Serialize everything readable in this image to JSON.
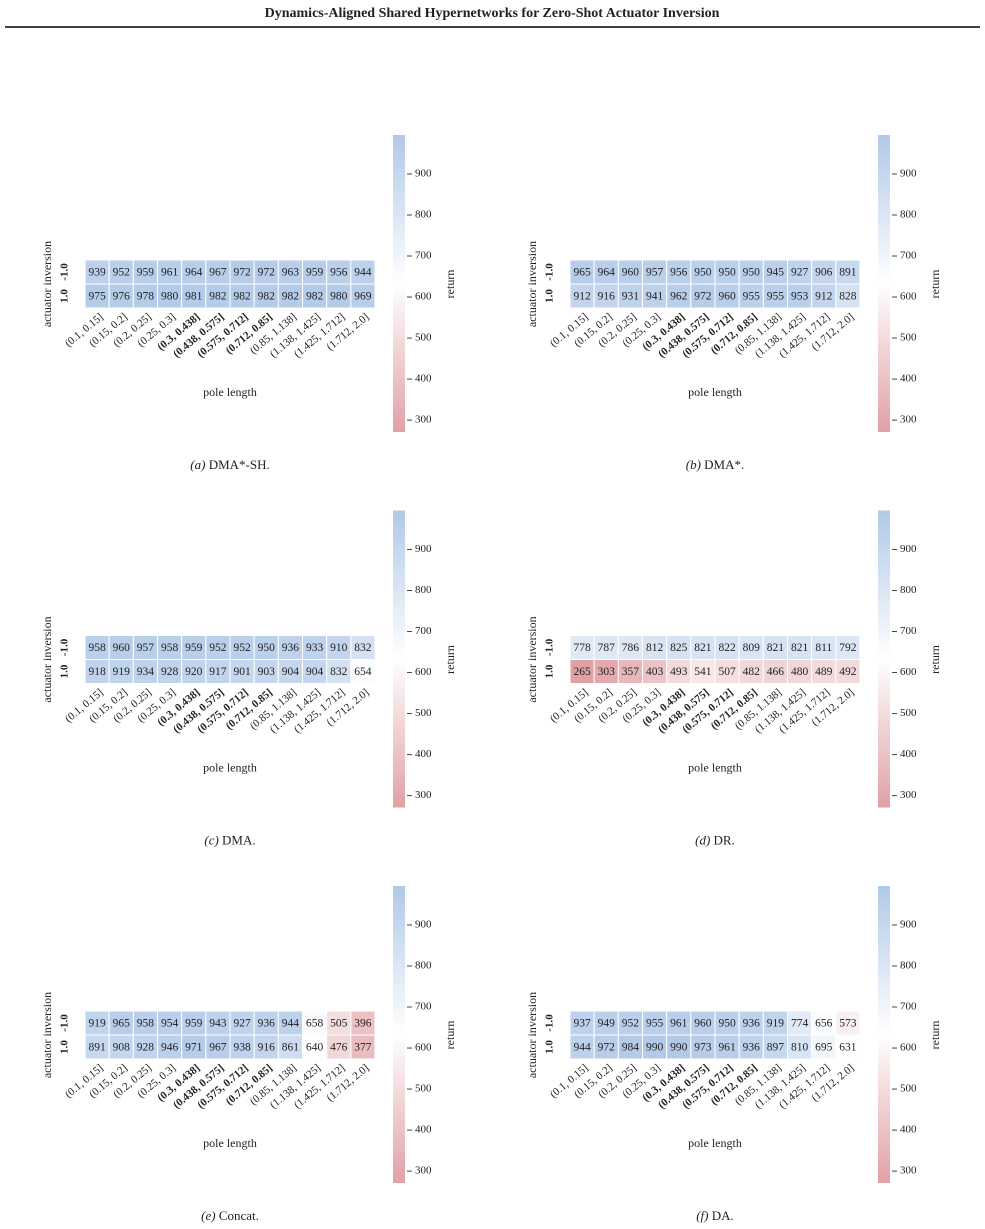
{
  "header": {
    "title": "Dynamics-Aligned Shared Hypernetworks for Zero-Shot Actuator Inversion"
  },
  "chart_data": [
    {
      "type": "heatmap",
      "caption": {
        "label": "(a)",
        "text": "DMA*-SH."
      },
      "x_label": "pole length",
      "y_label": "actuator inversion",
      "colorbar_label": "return",
      "x_categories": [
        "(0.1, 0.15]",
        "(0.15, 0.2]",
        "(0.2, 0.25]",
        "(0.25, 0.3]",
        "(0.3, 0.438]",
        "(0.438, 0.575]",
        "(0.575, 0.712]",
        "(0.712, 0.85]",
        "(0.85, 1.138]",
        "(1.138, 1.425]",
        "(1.425, 1.712]",
        "(1.712, 2.0]"
      ],
      "xtick_bold": [
        false,
        false,
        false,
        false,
        true,
        true,
        true,
        true,
        false,
        false,
        false,
        false
      ],
      "y_categories": [
        "-1.0",
        "1.0"
      ],
      "values": [
        [
          939,
          952,
          959,
          961,
          964,
          967,
          972,
          972,
          963,
          959,
          956,
          944
        ],
        [
          975,
          976,
          978,
          980,
          981,
          982,
          982,
          982,
          982,
          982,
          980,
          969
        ]
      ],
      "clim": [
        271,
        995
      ],
      "cticks": [
        300,
        400,
        500,
        600,
        700,
        800,
        900
      ],
      "colormap": [
        "#e0a1a5",
        "#ffffff",
        "#b1c9e8"
      ]
    },
    {
      "type": "heatmap",
      "caption": {
        "label": "(b)",
        "text": "DMA*."
      },
      "x_label": "pole length",
      "y_label": "actuator inversion",
      "colorbar_label": "return",
      "x_categories": [
        "(0.1, 0.15]",
        "(0.15, 0.2]",
        "(0.2, 0.25]",
        "(0.25, 0.3]",
        "(0.3, 0.438]",
        "(0.438, 0.575]",
        "(0.575, 0.712]",
        "(0.712, 0.85]",
        "(0.85, 1.138]",
        "(1.138, 1.425]",
        "(1.425, 1.712]",
        "(1.712, 2.0]"
      ],
      "xtick_bold": [
        false,
        false,
        false,
        false,
        true,
        true,
        true,
        true,
        false,
        false,
        false,
        false
      ],
      "y_categories": [
        "-1.0",
        "1.0"
      ],
      "values": [
        [
          965,
          964,
          960,
          957,
          956,
          950,
          950,
          950,
          945,
          927,
          906,
          891
        ],
        [
          912,
          916,
          931,
          941,
          962,
          972,
          960,
          955,
          955,
          953,
          912,
          828
        ]
      ],
      "clim": [
        271,
        995
      ],
      "cticks": [
        300,
        400,
        500,
        600,
        700,
        800,
        900
      ],
      "colormap": [
        "#e0a1a5",
        "#ffffff",
        "#b1c9e8"
      ]
    },
    {
      "type": "heatmap",
      "caption": {
        "label": "(c)",
        "text": "DMA."
      },
      "x_label": "pole length",
      "y_label": "actuator inversion",
      "colorbar_label": "return",
      "x_categories": [
        "(0.1, 0.15]",
        "(0.15, 0.2]",
        "(0.2, 0.25]",
        "(0.25, 0.3]",
        "(0.3, 0.438]",
        "(0.438, 0.575]",
        "(0.575, 0.712]",
        "(0.712, 0.85]",
        "(0.85, 1.138]",
        "(1.138, 1.425]",
        "(1.425, 1.712]",
        "(1.712, 2.0]"
      ],
      "xtick_bold": [
        false,
        false,
        false,
        false,
        true,
        true,
        true,
        true,
        false,
        false,
        false,
        false
      ],
      "y_categories": [
        "-1.0",
        "1.0"
      ],
      "values": [
        [
          958,
          960,
          957,
          958,
          959,
          952,
          952,
          950,
          936,
          933,
          910,
          832
        ],
        [
          918,
          919,
          934,
          928,
          920,
          917,
          901,
          903,
          904,
          904,
          832,
          654
        ]
      ],
      "clim": [
        271,
        995
      ],
      "cticks": [
        300,
        400,
        500,
        600,
        700,
        800,
        900
      ],
      "colormap": [
        "#e0a1a5",
        "#ffffff",
        "#b1c9e8"
      ]
    },
    {
      "type": "heatmap",
      "caption": {
        "label": "(d)",
        "text": "DR."
      },
      "x_label": "pole length",
      "y_label": "actuator inversion",
      "colorbar_label": "return",
      "x_categories": [
        "(0.1, 0.15]",
        "(0.15, 0.2]",
        "(0.2, 0.25]",
        "(0.25, 0.3]",
        "(0.3, 0.438]",
        "(0.438, 0.575]",
        "(0.575, 0.712]",
        "(0.712, 0.85]",
        "(0.85, 1.138]",
        "(1.138, 1.425]",
        "(1.425, 1.712]",
        "(1.712, 2.0]"
      ],
      "xtick_bold": [
        false,
        false,
        false,
        false,
        true,
        true,
        true,
        true,
        false,
        false,
        false,
        false
      ],
      "y_categories": [
        "-1.0",
        "1.0"
      ],
      "values": [
        [
          778,
          787,
          786,
          812,
          825,
          821,
          822,
          809,
          821,
          821,
          811,
          792
        ],
        [
          265,
          303,
          357,
          403,
          493,
          541,
          507,
          482,
          466,
          480,
          489,
          492
        ]
      ],
      "clim": [
        271,
        995
      ],
      "cticks": [
        300,
        400,
        500,
        600,
        700,
        800,
        900
      ],
      "colormap": [
        "#e0a1a5",
        "#ffffff",
        "#b1c9e8"
      ]
    },
    {
      "type": "heatmap",
      "caption": {
        "label": "(e)",
        "text": "Concat."
      },
      "x_label": "pole length",
      "y_label": "actuator inversion",
      "colorbar_label": "return",
      "x_categories": [
        "(0.1, 0.15]",
        "(0.15, 0.2]",
        "(0.2, 0.25]",
        "(0.25, 0.3]",
        "(0.3, 0.438]",
        "(0.438, 0.575]",
        "(0.575, 0.712]",
        "(0.712, 0.85]",
        "(0.85, 1.138]",
        "(1.138, 1.425]",
        "(1.425, 1.712]",
        "(1.712, 2.0]"
      ],
      "xtick_bold": [
        false,
        false,
        false,
        false,
        true,
        true,
        true,
        true,
        false,
        false,
        false,
        false
      ],
      "y_categories": [
        "-1.0",
        "1.0"
      ],
      "values": [
        [
          919,
          965,
          958,
          954,
          959,
          943,
          927,
          936,
          944,
          658,
          505,
          396
        ],
        [
          891,
          908,
          928,
          946,
          971,
          967,
          938,
          916,
          861,
          640,
          476,
          377
        ]
      ],
      "clim": [
        271,
        995
      ],
      "cticks": [
        300,
        400,
        500,
        600,
        700,
        800,
        900
      ],
      "colormap": [
        "#e0a1a5",
        "#ffffff",
        "#b1c9e8"
      ]
    },
    {
      "type": "heatmap",
      "caption": {
        "label": "(f)",
        "text": "DA."
      },
      "x_label": "pole length",
      "y_label": "actuator inversion",
      "colorbar_label": "return",
      "x_categories": [
        "(0.1, 0.15]",
        "(0.15, 0.2]",
        "(0.2, 0.25]",
        "(0.25, 0.3]",
        "(0.3, 0.438]",
        "(0.438, 0.575]",
        "(0.575, 0.712]",
        "(0.712, 0.85]",
        "(0.85, 1.138]",
        "(1.138, 1.425]",
        "(1.425, 1.712]",
        "(1.712, 2.0]"
      ],
      "xtick_bold": [
        false,
        false,
        false,
        false,
        true,
        true,
        true,
        true,
        false,
        false,
        false,
        false
      ],
      "y_categories": [
        "-1.0",
        "1.0"
      ],
      "values": [
        [
          937,
          949,
          952,
          955,
          961,
          960,
          950,
          936,
          919,
          774,
          656,
          573
        ],
        [
          944,
          972,
          984,
          990,
          990,
          973,
          961,
          936,
          897,
          810,
          695,
          631
        ]
      ],
      "clim": [
        271,
        995
      ],
      "cticks": [
        300,
        400,
        500,
        600,
        700,
        800,
        900
      ],
      "colormap": [
        "#e0a1a5",
        "#ffffff",
        "#b1c9e8"
      ]
    }
  ]
}
